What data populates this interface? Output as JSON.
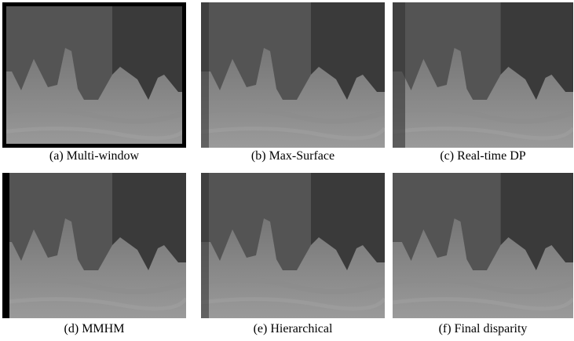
{
  "figure": {
    "panels": [
      {
        "caption": "(a) Multi-window"
      },
      {
        "caption": "(b) Max-Surface"
      },
      {
        "caption": "(c) Real-time DP"
      },
      {
        "caption": "(d) MMHM"
      },
      {
        "caption": "(e) Hierarchical"
      },
      {
        "caption": "(f) Final disparity"
      }
    ]
  }
}
